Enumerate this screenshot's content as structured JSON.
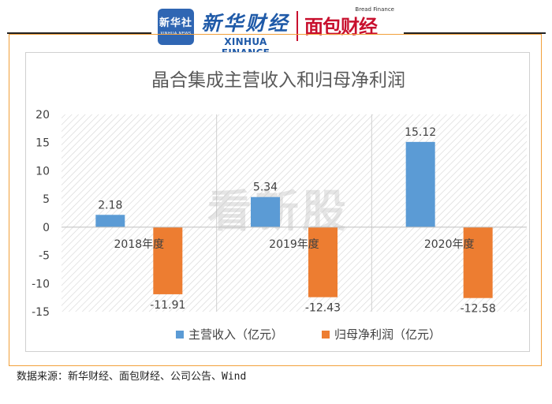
{
  "header": {
    "logo_badge_cn": "新华社",
    "logo_badge_en": "XINHUA NEWS",
    "brand_cn": "新华财经",
    "brand_en": "XINHUA FINANCE",
    "partner_en": "Bread Finance",
    "partner_cn": "面包财经"
  },
  "watermark": "看新股",
  "source": "数据来源：新华财经、面包财经、公司公告、Wind",
  "colors": {
    "series1": "#5b9bd5",
    "series2": "#ed7d31",
    "panel_border": "#f2a03a",
    "header_line": "#222222"
  },
  "chart_data": {
    "type": "bar",
    "title": "晶合集成主营收入和归母净利润",
    "categories": [
      "2018年度",
      "2019年度",
      "2020年度"
    ],
    "series": [
      {
        "name": "主营收入（亿元）",
        "values": [
          2.18,
          5.34,
          15.12
        ],
        "color": "#5b9bd5"
      },
      {
        "name": "归母净利润（亿元）",
        "values": [
          -11.91,
          -12.43,
          -12.58
        ],
        "color": "#ed7d31"
      }
    ],
    "data_labels": [
      [
        "2.18",
        "5.34",
        "15.12"
      ],
      [
        "-11.91",
        "-12.43",
        "-12.58"
      ]
    ],
    "ylim": [
      -15,
      20
    ],
    "yticks": [
      20,
      15,
      10,
      5,
      0,
      -5,
      -10,
      -15
    ],
    "legend_position": "bottom",
    "grid": false
  }
}
